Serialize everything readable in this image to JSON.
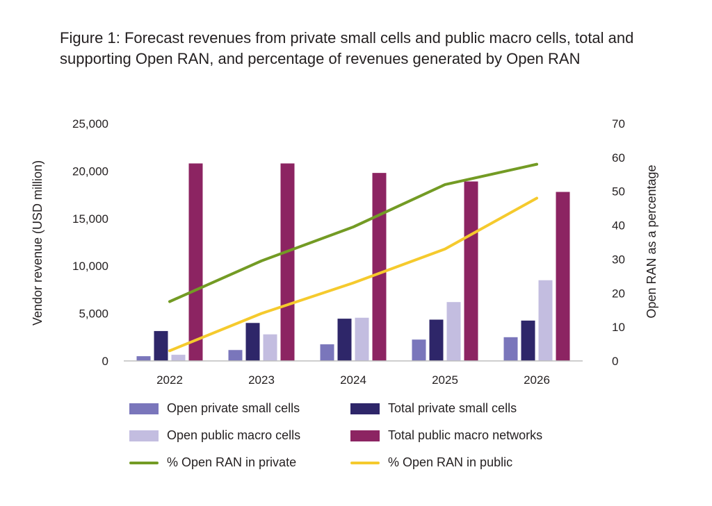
{
  "figure_label": "Figure 1:",
  "figure_caption": "Forecast revenues from private small cells and public macro cells, total and supporting Open RAN, and percentage of revenues generated by Open RAN",
  "chart_data": {
    "type": "bar",
    "categories": [
      "2022",
      "2023",
      "2024",
      "2025",
      "2026"
    ],
    "ylabel": "Vendor revenue (USD million)",
    "ylabel_right": "Open RAN as a percentage",
    "ylim": [
      0,
      25000
    ],
    "yticks": [
      0,
      5000,
      10000,
      15000,
      20000,
      25000
    ],
    "ytick_labels": [
      "0",
      "5,000",
      "10,000",
      "15,000",
      "20,000",
      "25,000"
    ],
    "ylim_right": [
      0,
      70
    ],
    "yticks_right": [
      0,
      10,
      20,
      30,
      40,
      50,
      60,
      70
    ],
    "ytick_labels_right": [
      "0",
      "10",
      "20",
      "30",
      "40",
      "50",
      "60",
      "70"
    ],
    "series": [
      {
        "name": "Open private small cells",
        "kind": "bar",
        "axis": "left",
        "color": "#7a76bb",
        "values": [
          500,
          1150,
          1750,
          2250,
          2500
        ]
      },
      {
        "name": "Total private small cells",
        "kind": "bar",
        "axis": "left",
        "color": "#2e2669",
        "values": [
          3150,
          4000,
          4450,
          4350,
          4250
        ]
      },
      {
        "name": "Open public macro cells",
        "kind": "bar",
        "axis": "left",
        "color": "#c3bde0",
        "values": [
          650,
          2800,
          4550,
          6200,
          8500
        ]
      },
      {
        "name": "Total public macro networks",
        "kind": "bar",
        "axis": "left",
        "color": "#8c2462",
        "values": [
          20800,
          20800,
          19800,
          18900,
          17800
        ]
      },
      {
        "name": "% Open RAN in private",
        "kind": "line",
        "axis": "right",
        "color": "#739b24",
        "values": [
          17.5,
          29.5,
          39.5,
          52,
          58
        ]
      },
      {
        "name": "% Open RAN in public",
        "kind": "line",
        "axis": "right",
        "color": "#f5ca2d",
        "values": [
          3,
          14,
          23,
          33,
          48
        ]
      }
    ],
    "legend_position": "bottom"
  }
}
